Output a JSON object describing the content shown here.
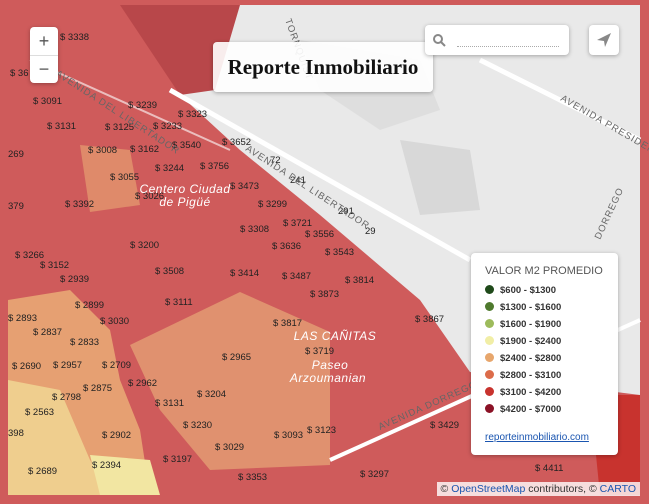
{
  "logo": "Reporte Inmobiliario",
  "zoom": {
    "in": "+",
    "out": "−"
  },
  "streets": [
    "AVENIDA DEL LIBERTADOR",
    "AVENIDA DEL LIBERTADOR",
    "AVENIDA PRESIDENTE",
    "TORNQUIST",
    "AVENIDA DORREGO",
    "DORREGO"
  ],
  "places": [
    "Centero Ciudad",
    "de Pigüé",
    "LAS CAÑITAS",
    "Paseo",
    "Arzoumanian"
  ],
  "prices": [
    "$ 3338",
    "$ 36",
    "$ 3091",
    "$ 3239",
    "$ 3323",
    "$ 3131",
    "$ 3125",
    "$ 3233",
    "269",
    "$ 3008",
    "$ 3162",
    "$ 3540",
    "$ 3652",
    "$ 3055",
    "$ 3244",
    "$ 3756",
    "72",
    "$ 3473",
    "241",
    "$ 3026",
    "$ 3299",
    "291",
    "379",
    "$ 3392",
    "$ 3721",
    "$ 3308",
    "$ 3556",
    "29",
    "$ 3266",
    "$ 3200",
    "$ 3636",
    "$ 3543",
    "$ 3152",
    "$ 3508",
    "$ 3414",
    "$ 3487",
    "$ 3814",
    "$ 2939",
    "$ 2899",
    "$ 3111",
    "$ 3873",
    "$ 2893",
    "$ 3030",
    "$ 3817",
    "$ 3867",
    "$ 2837",
    "$ 2833",
    "$ 3719",
    "$ 2965",
    "$ 2690",
    "$ 2957",
    "$ 2709",
    "$ 2798",
    "$ 2875",
    "$ 2962",
    "$ 3204",
    "$ 2563",
    "$ 3131",
    "$ 3230",
    "$ 3123",
    "$ 3429",
    "398",
    "$ 2902",
    "$ 3093",
    "$ 3029",
    "$ 3197",
    "$ 2394",
    "$ 2689",
    "$ 3353",
    "$ 3297",
    "$ 4411"
  ],
  "legend": {
    "title": "VALOR M2 PROMEDIO",
    "items": [
      {
        "label": "$600 - $1300",
        "color": "#1f4a1a"
      },
      {
        "label": "$1300 - $1600",
        "color": "#4f7a2e"
      },
      {
        "label": "$1600 - $1900",
        "color": "#9dbb5c"
      },
      {
        "label": "$1900 - $2400",
        "color": "#f1eea6"
      },
      {
        "label": "$2400 - $2800",
        "color": "#e7a66c"
      },
      {
        "label": "$2800 - $3100",
        "color": "#dc6c4a"
      },
      {
        "label": "$3100 - $4200",
        "color": "#c8332e"
      },
      {
        "label": "$4200 - $7000",
        "color": "#8b1226"
      }
    ],
    "link": "reporteinmobiliario.com"
  },
  "attribution": {
    "prefix": "©",
    "osm": "OpenStreetMap",
    "middle": "contributors, ©",
    "carto": "CARTO"
  }
}
